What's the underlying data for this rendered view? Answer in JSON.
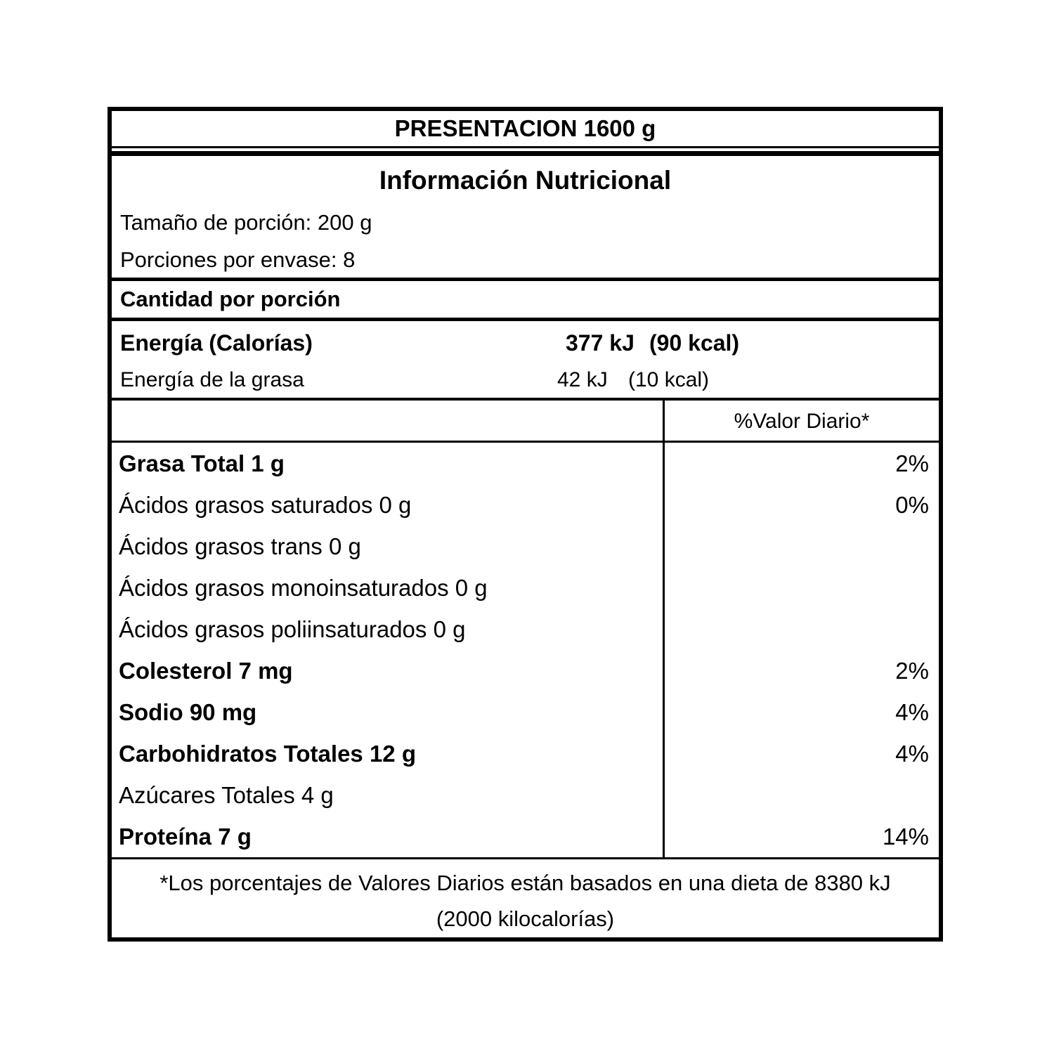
{
  "label": {
    "presentation": "PRESENTACION 1600 g",
    "title": "Información Nutricional",
    "serving_size": "Tamaño de porción: 200 g",
    "servings_per_container": "Porciones por envase: 8",
    "amount_per_serving": "Cantidad por porción",
    "energy": {
      "label": "Energía (Calorías)",
      "kj": "377 kJ",
      "kcal": "(90 kcal)"
    },
    "energy_fat": {
      "label": "Energía de la grasa",
      "kj": "42 kJ",
      "kcal": "(10 kcal)"
    },
    "daily_value_header": "%Valor Diario*",
    "nutrients": [
      {
        "label": "Grasa Total 1 g",
        "dv": "2%"
      },
      {
        "label": "Ácidos grasos saturados 0 g",
        "dv": "0%"
      },
      {
        "label": "Ácidos grasos trans 0 g",
        "dv": ""
      },
      {
        "label": "Ácidos grasos monoinsaturados 0 g",
        "dv": ""
      },
      {
        "label": "Ácidos grasos poliinsaturados 0 g",
        "dv": ""
      },
      {
        "label": "Colesterol 7 mg",
        "dv": "2%"
      },
      {
        "label": "Sodio 90 mg",
        "dv": "4%"
      },
      {
        "label": "Carbohidratos Totales 12 g",
        "dv": "4%"
      },
      {
        "label": "Azúcares Totales 4 g",
        "dv": ""
      },
      {
        "label": "Proteína 7 g",
        "dv": "14%"
      }
    ],
    "footnote_line1": "*Los porcentajes de Valores Diarios están basados en una dieta de 8380 kJ",
    "footnote_line2": "(2000 kilocalorías)",
    "colors": {
      "border": "#000000",
      "background": "#ffffff"
    }
  }
}
